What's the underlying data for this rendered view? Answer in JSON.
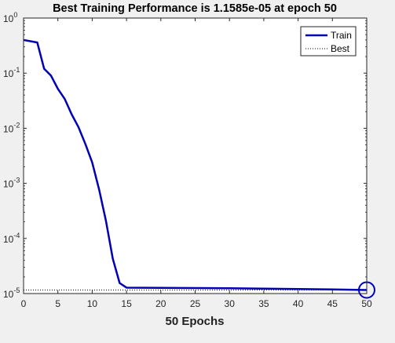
{
  "chart_data": {
    "type": "line",
    "title": "Best Training Performance is 1.1585e-05 at epoch 50",
    "xlabel": "50 Epochs",
    "ylabel": "",
    "xlim": [
      0,
      50
    ],
    "ylim": [
      1e-05,
      1
    ],
    "yscale": "log",
    "grid": false,
    "legend_position": "top-right",
    "x_ticks": [
      0,
      5,
      10,
      15,
      20,
      25,
      30,
      35,
      40,
      45,
      50
    ],
    "y_ticks": [
      {
        "value": 1,
        "base": "10",
        "exp": "0"
      },
      {
        "value": 0.1,
        "base": "10",
        "exp": "-1"
      },
      {
        "value": 0.01,
        "base": "10",
        "exp": "-2"
      },
      {
        "value": 0.001,
        "base": "10",
        "exp": "-3"
      },
      {
        "value": 0.0001,
        "base": "10",
        "exp": "-4"
      },
      {
        "value": 1e-05,
        "base": "10",
        "exp": "-5"
      }
    ],
    "series": [
      {
        "name": "Train",
        "color": "#0000b4",
        "style": "solid",
        "x": [
          0,
          2,
          3,
          4,
          5,
          6,
          7,
          8,
          9,
          10,
          11,
          12,
          13,
          14,
          15,
          20,
          25,
          30,
          35,
          40,
          45,
          50
        ],
        "y": [
          0.4,
          0.36,
          0.12,
          0.09,
          0.052,
          0.034,
          0.018,
          0.0105,
          0.0052,
          0.0024,
          0.00078,
          0.00021,
          4.3e-05,
          1.55e-05,
          1.28e-05,
          1.27e-05,
          1.26e-05,
          1.25e-05,
          1.23e-05,
          1.21e-05,
          1.19e-05,
          1.1585e-05
        ]
      },
      {
        "name": "Best",
        "color": "#000000",
        "style": "dotted",
        "hline": 1.1585e-05,
        "vline": 50
      }
    ],
    "best_marker": {
      "x": 50,
      "y": 1.1585e-05,
      "color": "#0000b4"
    }
  }
}
